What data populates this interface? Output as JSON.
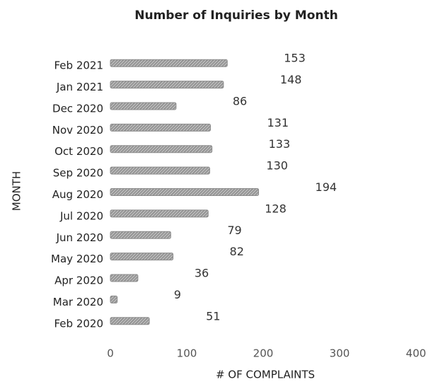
{
  "chart_data": {
    "type": "bar",
    "orientation": "horizontal",
    "title": "Number of Inquiries by Month",
    "x_label": "# OF COMPLAINTS",
    "y_label": "MONTH",
    "categories": [
      "Feb 2021",
      "Jan 2021",
      "Dec 2020",
      "Nov 2020",
      "Oct 2020",
      "Sep 2020",
      "Aug 2020",
      "Jul 2020",
      "Jun 2020",
      "May 2020",
      "Apr 2020",
      "Mar 2020",
      "Feb 2020"
    ],
    "values": [
      153,
      148,
      86,
      131,
      133,
      130,
      194,
      128,
      79,
      82,
      36,
      9,
      51
    ],
    "color": "#8c8c8c",
    "xlim": [
      0,
      400
    ],
    "xticks": [
      0,
      100,
      200,
      300,
      400
    ],
    "grid": false
  }
}
